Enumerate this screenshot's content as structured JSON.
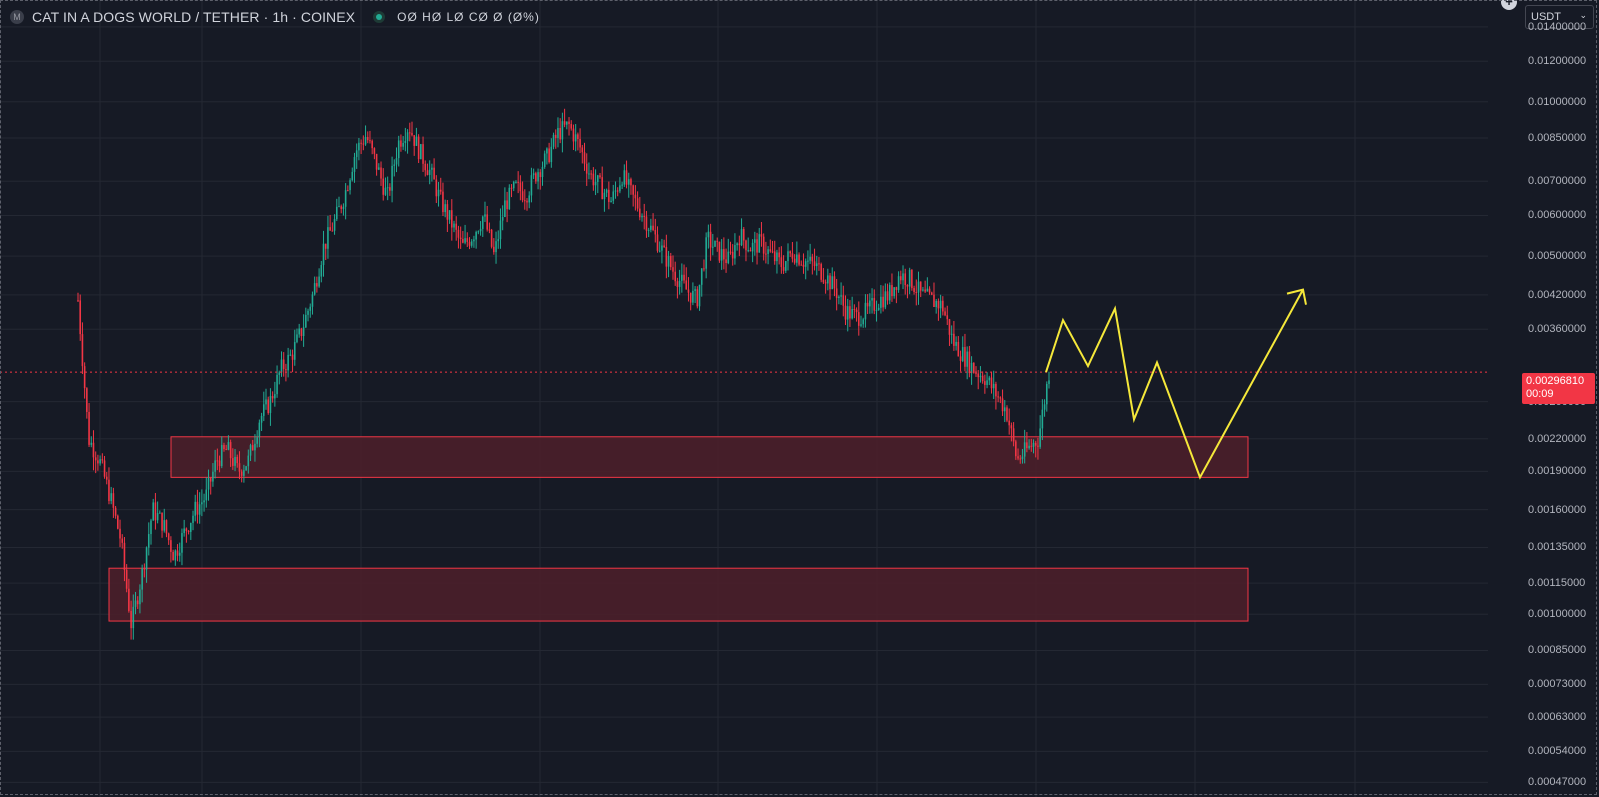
{
  "legend": {
    "logo_letter": "M",
    "symbol_title": "CAT IN A DOGS WORLD / TETHER · 1h · COINEX",
    "ohlc": "OØ HØ LØ CØ Ø (Ø%)"
  },
  "price_axis": {
    "currency": "USDT",
    "ticks": [
      "0.01400000",
      "0.01200000",
      "0.01000000",
      "0.00850000",
      "0.00700000",
      "0.00600000",
      "0.00500000",
      "0.00420000",
      "0.00360000",
      "0.00260000",
      "0.00220000",
      "0.00190000",
      "0.00160000",
      "0.00135000",
      "0.00115000",
      "0.00100000",
      "0.00085000",
      "0.00073000",
      "0.00063000",
      "0.00054000",
      "0.00047000"
    ],
    "last_price": "0.00296810",
    "countdown": "00:09"
  },
  "colors": {
    "background": "#161a25",
    "grid": "#242833",
    "up": "#22ab94",
    "down": "#f23645",
    "zone_fill": "#4a1f2a",
    "zone_border": "#f23645",
    "projection": "#f5e83a"
  },
  "chart_data": {
    "type": "candlestick",
    "symbol": "CAT/USDT",
    "scale": "log",
    "ylim": [
      0.00044,
      0.0158
    ],
    "last_price": 0.0029681,
    "price_path": [
      0.0041,
      0.0022,
      0.002,
      0.0017,
      0.0014,
      0.00095,
      0.0012,
      0.0016,
      0.0015,
      0.0013,
      0.00145,
      0.0016,
      0.0017,
      0.002,
      0.0021,
      0.0019,
      0.002,
      0.0024,
      0.0026,
      0.003,
      0.0032,
      0.0036,
      0.0042,
      0.0052,
      0.0058,
      0.0066,
      0.008,
      0.0086,
      0.0075,
      0.0065,
      0.0083,
      0.009,
      0.008,
      0.0073,
      0.0064,
      0.0058,
      0.0052,
      0.0055,
      0.006,
      0.005,
      0.0063,
      0.0068,
      0.0066,
      0.0073,
      0.0078,
      0.0087,
      0.009,
      0.0082,
      0.0072,
      0.0068,
      0.0064,
      0.0072,
      0.0065,
      0.006,
      0.0055,
      0.005,
      0.0046,
      0.0043,
      0.0041,
      0.0054,
      0.0051,
      0.0049,
      0.0055,
      0.0052,
      0.0053,
      0.005,
      0.0048,
      0.0051,
      0.0049,
      0.0048,
      0.0046,
      0.0043,
      0.0039,
      0.0038,
      0.0039,
      0.0041,
      0.0042,
      0.0046,
      0.0045,
      0.0042,
      0.0041,
      0.004,
      0.0034,
      0.0032,
      0.003,
      0.0029,
      0.0027,
      0.0025,
      0.002,
      0.0021,
      0.0022,
      0.0029681
    ],
    "zones": [
      {
        "name": "support-upper",
        "price_high": 0.00222,
        "price_low": 0.00185
      },
      {
        "name": "support-lower",
        "price_high": 0.00123,
        "price_low": 0.00097
      }
    ],
    "projection_path": [
      0.002968,
      0.00375,
      0.00305,
      0.00395,
      0.0024,
      0.0031,
      0.00185,
      0.0043
    ]
  }
}
